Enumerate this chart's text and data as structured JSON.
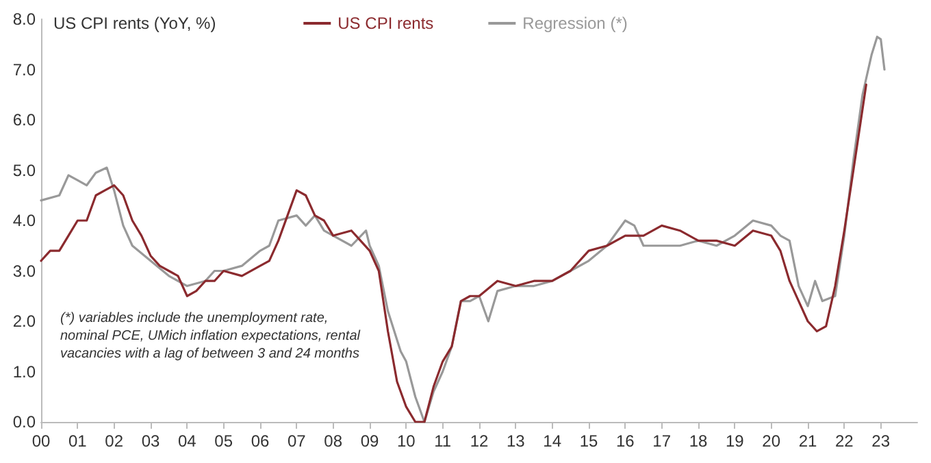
{
  "chart_data": {
    "type": "line",
    "title": "US CPI rents (YoY, %)",
    "annotations": [
      "(*) variables include the unemployment rate, nominal PCE, UMich inflation expectations, rental vacancies with a lag of between 3 and 24 months"
    ],
    "series": [
      {
        "name": "US CPI rents",
        "color": "#8b2a2e",
        "x": [
          2000,
          2000.25,
          2000.5,
          2000.75,
          2001,
          2001.25,
          2001.5,
          2001.75,
          2002,
          2002.25,
          2002.5,
          2002.75,
          2003,
          2003.25,
          2003.5,
          2003.75,
          2004,
          2004.25,
          2004.5,
          2004.75,
          2005,
          2005.5,
          2006,
          2006.25,
          2006.5,
          2006.75,
          2007,
          2007.25,
          2007.5,
          2007.75,
          2008,
          2008.5,
          2008.75,
          2009,
          2009.25,
          2009.5,
          2009.75,
          2010,
          2010.25,
          2010.5,
          2010.75,
          2011,
          2011.25,
          2011.5,
          2011.75,
          2012,
          2012.5,
          2013,
          2013.5,
          2014,
          2014.5,
          2015,
          2015.5,
          2016,
          2016.5,
          2017,
          2017.5,
          2018,
          2018.5,
          2019,
          2019.5,
          2020,
          2020.25,
          2020.5,
          2020.75,
          2021,
          2021.25,
          2021.5,
          2021.75,
          2022,
          2022.25,
          2022.6
        ],
        "values": [
          3.2,
          3.4,
          3.4,
          3.7,
          4.0,
          4.0,
          4.5,
          4.6,
          4.7,
          4.5,
          4.0,
          3.7,
          3.3,
          3.1,
          3.0,
          2.9,
          2.5,
          2.6,
          2.8,
          2.8,
          3.0,
          2.9,
          3.1,
          3.2,
          3.6,
          4.1,
          4.6,
          4.5,
          4.1,
          4.0,
          3.7,
          3.8,
          3.6,
          3.4,
          3.0,
          1.8,
          0.8,
          0.3,
          0.0,
          0.0,
          0.7,
          1.2,
          1.5,
          2.4,
          2.5,
          2.5,
          2.8,
          2.7,
          2.8,
          2.8,
          3.0,
          3.4,
          3.5,
          3.7,
          3.7,
          3.9,
          3.8,
          3.6,
          3.6,
          3.5,
          3.8,
          3.7,
          3.4,
          2.8,
          2.4,
          2.0,
          1.8,
          1.9,
          2.7,
          3.8,
          5.0,
          6.7
        ]
      },
      {
        "name": "Regression (*)",
        "color": "#999999",
        "x": [
          2000,
          2000.5,
          2000.75,
          2001,
          2001.25,
          2001.5,
          2001.8,
          2002,
          2002.25,
          2002.5,
          2003,
          2003.5,
          2004,
          2004.5,
          2004.75,
          2005,
          2005.5,
          2006,
          2006.25,
          2006.5,
          2007,
          2007.25,
          2007.5,
          2007.75,
          2008,
          2008.5,
          2008.9,
          2009,
          2009.25,
          2009.5,
          2009.85,
          2010,
          2010.25,
          2010.5,
          2010.75,
          2011,
          2011.25,
          2011.5,
          2011.75,
          2012,
          2012.25,
          2012.5,
          2013,
          2013.5,
          2014,
          2014.5,
          2015,
          2015.5,
          2016,
          2016.25,
          2016.5,
          2017,
          2017.5,
          2018,
          2018.5,
          2019,
          2019.5,
          2020,
          2020.25,
          2020.5,
          2020.75,
          2021,
          2021.2,
          2021.4,
          2021.75,
          2022,
          2022.25,
          2022.5,
          2022.75,
          2022.9,
          2023,
          2023.1
        ],
        "values": [
          4.4,
          4.5,
          4.9,
          4.8,
          4.7,
          4.95,
          5.05,
          4.6,
          3.9,
          3.5,
          3.2,
          2.9,
          2.7,
          2.8,
          3.0,
          3.0,
          3.1,
          3.4,
          3.5,
          4.0,
          4.1,
          3.9,
          4.1,
          3.8,
          3.7,
          3.5,
          3.8,
          3.5,
          3.1,
          2.2,
          1.4,
          1.2,
          0.5,
          0.0,
          0.6,
          1.0,
          1.5,
          2.4,
          2.4,
          2.5,
          2.0,
          2.6,
          2.7,
          2.7,
          2.8,
          3.0,
          3.2,
          3.5,
          4.0,
          3.9,
          3.5,
          3.5,
          3.5,
          3.6,
          3.5,
          3.7,
          4.0,
          3.9,
          3.7,
          3.6,
          2.7,
          2.3,
          2.8,
          2.4,
          2.5,
          3.7,
          5.2,
          6.5,
          7.3,
          7.65,
          7.6,
          7.0
        ]
      }
    ],
    "xlim": [
      2000,
      2024
    ],
    "xticks": [
      {
        "value": 2000,
        "label": "00"
      },
      {
        "value": 2001,
        "label": "01"
      },
      {
        "value": 2002,
        "label": "02"
      },
      {
        "value": 2003,
        "label": "03"
      },
      {
        "value": 2004,
        "label": "04"
      },
      {
        "value": 2005,
        "label": "05"
      },
      {
        "value": 2006,
        "label": "06"
      },
      {
        "value": 2007,
        "label": "07"
      },
      {
        "value": 2008,
        "label": "08"
      },
      {
        "value": 2009,
        "label": "09"
      },
      {
        "value": 2010,
        "label": "10"
      },
      {
        "value": 2011,
        "label": "11"
      },
      {
        "value": 2012,
        "label": "12"
      },
      {
        "value": 2013,
        "label": "13"
      },
      {
        "value": 2014,
        "label": "14"
      },
      {
        "value": 2015,
        "label": "15"
      },
      {
        "value": 2016,
        "label": "16"
      },
      {
        "value": 2017,
        "label": "17"
      },
      {
        "value": 2018,
        "label": "18"
      },
      {
        "value": 2019,
        "label": "19"
      },
      {
        "value": 2020,
        "label": "20"
      },
      {
        "value": 2021,
        "label": "21"
      },
      {
        "value": 2022,
        "label": "22"
      },
      {
        "value": 2023,
        "label": "23"
      }
    ],
    "ylim": [
      0,
      8
    ],
    "yticks": [
      {
        "value": 0,
        "label": "0.0"
      },
      {
        "value": 1,
        "label": "1.0"
      },
      {
        "value": 2,
        "label": "2.0"
      },
      {
        "value": 3,
        "label": "3.0"
      },
      {
        "value": 4,
        "label": "4.0"
      },
      {
        "value": 5,
        "label": "5.0"
      },
      {
        "value": 6,
        "label": "6.0"
      },
      {
        "value": 7,
        "label": "7.0"
      },
      {
        "value": 8,
        "label": "8.0"
      }
    ],
    "grid": false,
    "legend": "top",
    "marker": "none",
    "line_style": "solid"
  }
}
